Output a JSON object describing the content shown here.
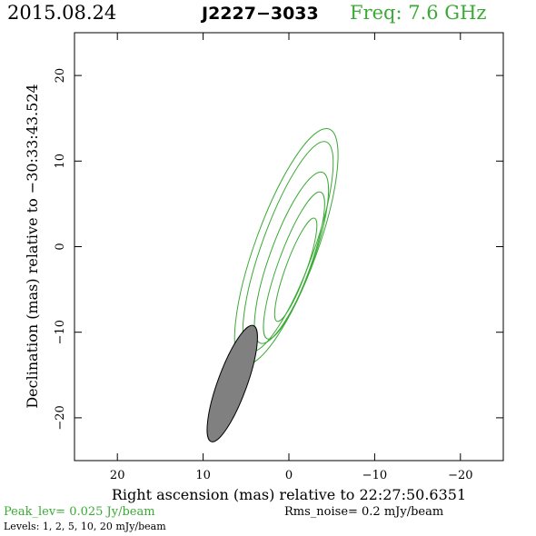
{
  "header": {
    "date": "2015.08.24",
    "source": "J2227−3033",
    "freq": "Freq: 7.6 GHz"
  },
  "footer": {
    "peak": "Peak_lev=  0.025 Jy/beam",
    "rms": "Rms_noise=   0.2 mJy/beam",
    "levels": "Levels:   1,    2,    5,   10,   20 mJy/beam"
  },
  "colors": {
    "contour": "#3aaa35",
    "beam_fill": "#808080",
    "axes": "#000000"
  },
  "chart_data": {
    "type": "contour",
    "xlabel": "Right ascension (mas) relative to 22:27:50.6351",
    "ylabel": "Declination (mas) relative to −30:33:43.524",
    "xlim": [
      25,
      -25
    ],
    "ylim": [
      -25,
      25
    ],
    "xticks": [
      20,
      10,
      0,
      -10,
      -20
    ],
    "xtick_labels": [
      "20",
      "10",
      "0",
      "−10",
      "−20"
    ],
    "yticks": [
      -20,
      -10,
      0,
      10,
      20
    ],
    "ytick_labels": [
      "−20",
      "−10",
      "0",
      "10",
      "20"
    ],
    "contour_levels_mJy": [
      1,
      2,
      5,
      10,
      20
    ],
    "contours": [
      {
        "level": 1,
        "center": [
          0.3,
          0.0
        ],
        "semi_major": 14.6,
        "semi_minor": 3.6,
        "pa_deg": 160
      },
      {
        "level": 2,
        "center": [
          0.1,
          0.0
        ],
        "semi_major": 13.0,
        "semi_minor": 3.0,
        "pa_deg": 160
      },
      {
        "level": 5,
        "center": [
          -0.3,
          -1.3
        ],
        "semi_major": 10.6,
        "semi_minor": 2.5,
        "pa_deg": 160
      },
      {
        "level": 10,
        "center": [
          -0.6,
          -2.2
        ],
        "semi_major": 9.1,
        "semi_minor": 1.85,
        "pa_deg": 160
      },
      {
        "level": 20,
        "center": [
          -0.8,
          -2.7
        ],
        "semi_major": 6.4,
        "semi_minor": 1.2,
        "pa_deg": 160
      }
    ],
    "beam": {
      "center": [
        6.6,
        -16.0
      ],
      "semi_major": 7.2,
      "semi_minor": 1.7,
      "pa_deg": 160
    }
  }
}
